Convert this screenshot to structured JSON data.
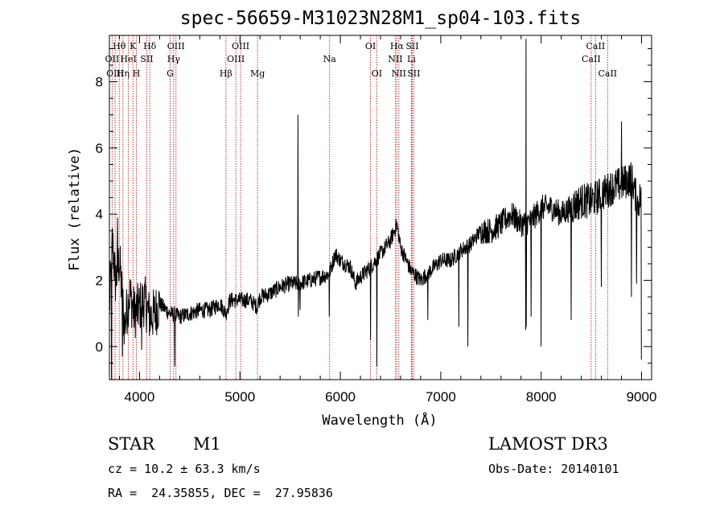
{
  "chart_data": {
    "type": "line",
    "title": "spec-56659-M31023N28M1_sp04-103.fits",
    "xlabel": "Wavelength (Å)",
    "ylabel": "Flux (relative)",
    "xlim": [
      3700,
      9100
    ],
    "ylim": [
      -1.0,
      9.4
    ],
    "xticks": [
      4000,
      5000,
      6000,
      7000,
      8000,
      9000
    ],
    "yticks": [
      0,
      2,
      4,
      6,
      8
    ],
    "grid": false,
    "spectrum": {
      "name": "flux",
      "anchors": [
        [
          3700,
          1.2
        ],
        [
          3730,
          3.2
        ],
        [
          3760,
          2.0
        ],
        [
          3800,
          2.6
        ],
        [
          3850,
          0.6
        ],
        [
          3900,
          1.6
        ],
        [
          3950,
          1.0
        ],
        [
          4000,
          1.2
        ],
        [
          4050,
          1.4
        ],
        [
          4100,
          0.9
        ],
        [
          4150,
          1.0
        ],
        [
          4200,
          1.3
        ],
        [
          4300,
          1.0
        ],
        [
          4400,
          0.9
        ],
        [
          4500,
          1.0
        ],
        [
          4600,
          1.1
        ],
        [
          4700,
          1.1
        ],
        [
          4800,
          1.3
        ],
        [
          4860,
          1.0
        ],
        [
          4900,
          1.4
        ],
        [
          5000,
          1.4
        ],
        [
          5100,
          1.4
        ],
        [
          5170,
          1.2
        ],
        [
          5200,
          1.5
        ],
        [
          5300,
          1.6
        ],
        [
          5400,
          1.8
        ],
        [
          5500,
          1.9
        ],
        [
          5580,
          1.9
        ],
        [
          5700,
          2.0
        ],
        [
          5800,
          2.1
        ],
        [
          5890,
          2.2
        ],
        [
          5950,
          2.8
        ],
        [
          6000,
          2.6
        ],
        [
          6100,
          2.4
        ],
        [
          6150,
          1.9
        ],
        [
          6200,
          2.1
        ],
        [
          6300,
          2.4
        ],
        [
          6400,
          2.8
        ],
        [
          6500,
          3.2
        ],
        [
          6563,
          3.7
        ],
        [
          6600,
          3.0
        ],
        [
          6700,
          2.3
        ],
        [
          6800,
          2.0
        ],
        [
          6900,
          2.3
        ],
        [
          7000,
          2.6
        ],
        [
          7100,
          2.6
        ],
        [
          7200,
          2.9
        ],
        [
          7300,
          3.1
        ],
        [
          7400,
          3.5
        ],
        [
          7500,
          3.5
        ],
        [
          7600,
          3.7
        ],
        [
          7700,
          4.0
        ],
        [
          7800,
          3.7
        ],
        [
          7900,
          3.8
        ],
        [
          8000,
          4.2
        ],
        [
          8100,
          4.2
        ],
        [
          8200,
          4.0
        ],
        [
          8300,
          4.2
        ],
        [
          8400,
          4.4
        ],
        [
          8500,
          4.4
        ],
        [
          8600,
          4.6
        ],
        [
          8700,
          4.8
        ],
        [
          8800,
          4.9
        ],
        [
          8900,
          5.1
        ],
        [
          8960,
          4.3
        ],
        [
          9000,
          4.6
        ]
      ],
      "spikes": [
        [
          3720,
          -1.0
        ],
        [
          3780,
          3.9
        ],
        [
          3830,
          -0.3
        ],
        [
          4020,
          -0.1
        ],
        [
          4350,
          -0.6
        ],
        [
          5577,
          7.0
        ],
        [
          5580,
          0.9
        ],
        [
          5600,
          1.1
        ],
        [
          5890,
          0.9
        ],
        [
          6300,
          0.2
        ],
        [
          6363,
          -0.6
        ],
        [
          6870,
          0.8
        ],
        [
          7180,
          0.6
        ],
        [
          7270,
          0.0
        ],
        [
          7846,
          0.5
        ],
        [
          7850,
          9.3
        ],
        [
          7852,
          0.6
        ],
        [
          7900,
          0.9
        ],
        [
          8000,
          0.0
        ],
        [
          8300,
          0.8
        ],
        [
          8600,
          1.8
        ],
        [
          8800,
          6.8
        ],
        [
          8900,
          1.5
        ],
        [
          8950,
          1.9
        ],
        [
          9000,
          -0.4
        ]
      ]
    },
    "lines": [
      {
        "label": "Hθ",
        "wave": 3798,
        "row": 0
      },
      {
        "label": "OII",
        "wave": 3727,
        "row": 1
      },
      {
        "label": "OIII",
        "wave": 3757,
        "row": 2
      },
      {
        "label": "K",
        "wave": 3934,
        "row": 0
      },
      {
        "label": "HeI",
        "wave": 3889,
        "row": 1
      },
      {
        "label": "Hη",
        "wave": 3835,
        "row": 2
      },
      {
        "label": "H",
        "wave": 3969,
        "row": 2
      },
      {
        "label": "Hδ",
        "wave": 4102,
        "row": 0
      },
      {
        "label": "SII",
        "wave": 4072,
        "row": 1
      },
      {
        "label": "OIII",
        "wave": 4363,
        "row": 0
      },
      {
        "label": "Hγ",
        "wave": 4340,
        "row": 1
      },
      {
        "label": "G",
        "wave": 4305,
        "row": 2
      },
      {
        "label": "Hβ",
        "wave": 4861,
        "row": 2
      },
      {
        "label": "OIII",
        "wave": 5007,
        "row": 0
      },
      {
        "label": "OIII",
        "wave": 4959,
        "row": 1
      },
      {
        "label": "Mg",
        "wave": 5175,
        "row": 2
      },
      {
        "label": "Na",
        "wave": 5893,
        "row": 1
      },
      {
        "label": "OI",
        "wave": 6300,
        "row": 0
      },
      {
        "label": "OI",
        "wave": 6363,
        "row": 2
      },
      {
        "label": "Hα",
        "wave": 6563,
        "row": 0
      },
      {
        "label": "SII",
        "wave": 6716,
        "row": 0
      },
      {
        "label": "NII",
        "wave": 6548,
        "row": 1
      },
      {
        "label": "Li",
        "wave": 6708,
        "row": 1
      },
      {
        "label": "NII",
        "wave": 6583,
        "row": 2
      },
      {
        "label": "SII",
        "wave": 6731,
        "row": 2
      },
      {
        "label": "CaII",
        "wave": 8542,
        "row": 0
      },
      {
        "label": "CaII",
        "wave": 8498,
        "row": 1
      },
      {
        "label": "CaII",
        "wave": 8662,
        "row": 2
      }
    ]
  },
  "info": {
    "object_class": "STAR",
    "subclass": "M1",
    "survey": "LAMOST DR3",
    "velocity": "cz = 10.2 ± 63.3 km/s",
    "obs_date": "Obs-Date: 20140101",
    "coords": "RA =  24.35855, DEC =  27.95836"
  },
  "colors": {
    "line_marker": "#b22222",
    "spectrum": "#000000"
  }
}
